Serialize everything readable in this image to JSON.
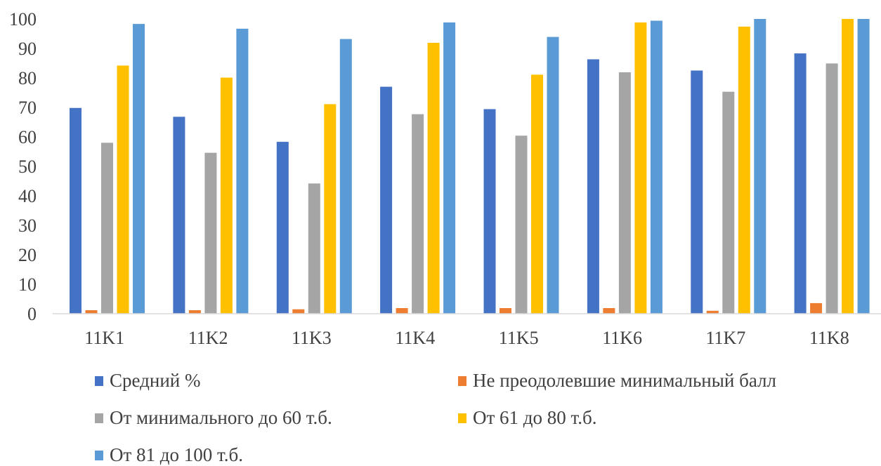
{
  "chart_data": {
    "type": "bar",
    "categories": [
      "11K1",
      "11K2",
      "11K3",
      "11K4",
      "11K5",
      "11K6",
      "11K7",
      "11K8"
    ],
    "ylim": [
      0,
      100
    ],
    "yticks": [
      0,
      10,
      20,
      30,
      40,
      50,
      60,
      70,
      80,
      90,
      100
    ],
    "grid": false,
    "legend_position": "bottom",
    "series": [
      {
        "name": "Средний %",
        "color": "#4472C4",
        "values": [
          69.8,
          66.8,
          58.3,
          77.0,
          69.4,
          86.3,
          82.5,
          88.3
        ]
      },
      {
        "name": "Не преодолевшие минимальный балл",
        "color": "#ED7D31",
        "values": [
          1.2,
          1.2,
          1.5,
          1.9,
          1.9,
          1.9,
          1.0,
          3.6
        ]
      },
      {
        "name": "От минимального до 60 т.б.",
        "color": "#A5A5A5",
        "values": [
          58.0,
          54.6,
          44.2,
          67.7,
          60.4,
          81.9,
          75.3,
          84.9
        ]
      },
      {
        "name": "От 61 до 80 т.б.",
        "color": "#FFC000",
        "values": [
          84.2,
          80.1,
          71.1,
          91.9,
          81.1,
          98.8,
          97.4,
          100
        ]
      },
      {
        "name": "От 81 до 100 т.б.",
        "color": "#5B9BD5",
        "values": [
          98.3,
          96.7,
          93.2,
          98.8,
          93.9,
          99.4,
          100,
          100
        ]
      }
    ]
  }
}
